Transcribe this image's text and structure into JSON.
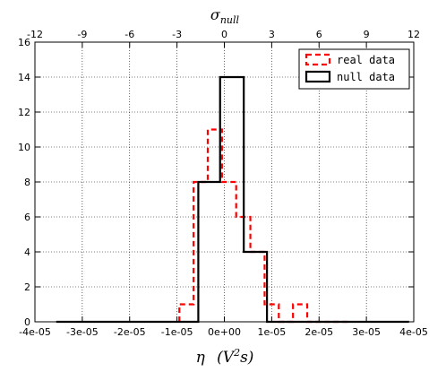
{
  "chart_data": {
    "type": "step-histogram",
    "xlabel": "η  (V²s)",
    "top_xlabel": "σ_null",
    "xlim": [
      -4e-05,
      4e-05
    ],
    "ylim": [
      0,
      16
    ],
    "top_xlim": [
      -12,
      12
    ],
    "grid": true,
    "legend_position": "top-right",
    "x_ticks": [
      -4e-05,
      -3e-05,
      -2e-05,
      -1e-05,
      0,
      1e-05,
      2e-05,
      3e-05,
      4e-05
    ],
    "x_tick_labels": [
      "-4e-05",
      "-3e-05",
      "-2e-05",
      "-1e-05",
      "0e+00",
      "1e-05",
      "2e-05",
      "3e-05",
      "4e-05"
    ],
    "y_ticks": [
      0,
      2,
      4,
      6,
      8,
      10,
      12,
      14,
      16
    ],
    "y_tick_labels": [
      "0",
      "2",
      "4",
      "6",
      "8",
      "10",
      "12",
      "14",
      "16"
    ],
    "top_ticks": [
      -12,
      -9,
      -6,
      -3,
      0,
      3,
      6,
      9,
      12
    ],
    "top_tick_labels": [
      "-12",
      "-9",
      "-6",
      "-3",
      "0",
      "3",
      "6",
      "9",
      "12"
    ],
    "series": [
      {
        "name": "real data",
        "color": "#ff0000",
        "style": "dashed",
        "bins": [
          -9.5e-06,
          -6.5e-06,
          -3.5e-06,
          -5e-07,
          2.5e-06,
          5.5e-06,
          8.5e-06,
          1.15e-05,
          1.45e-05,
          1.75e-05,
          2.05e-05,
          2.35e-05,
          2.65e-05
        ],
        "counts": [
          1,
          8,
          11,
          8,
          6,
          4,
          1,
          0,
          1,
          0,
          0,
          0
        ]
      },
      {
        "name": "null data",
        "color": "#000000",
        "style": "solid",
        "bins": [
          -3.55e-05,
          -2.55e-05,
          -1.55e-05,
          -5.5e-06,
          -9e-07,
          4.1e-06,
          9e-06,
          1.9e-05,
          2.9e-05,
          3.9e-05
        ],
        "counts": [
          0,
          0,
          0,
          8,
          14,
          4,
          0,
          0,
          0
        ]
      }
    ]
  }
}
